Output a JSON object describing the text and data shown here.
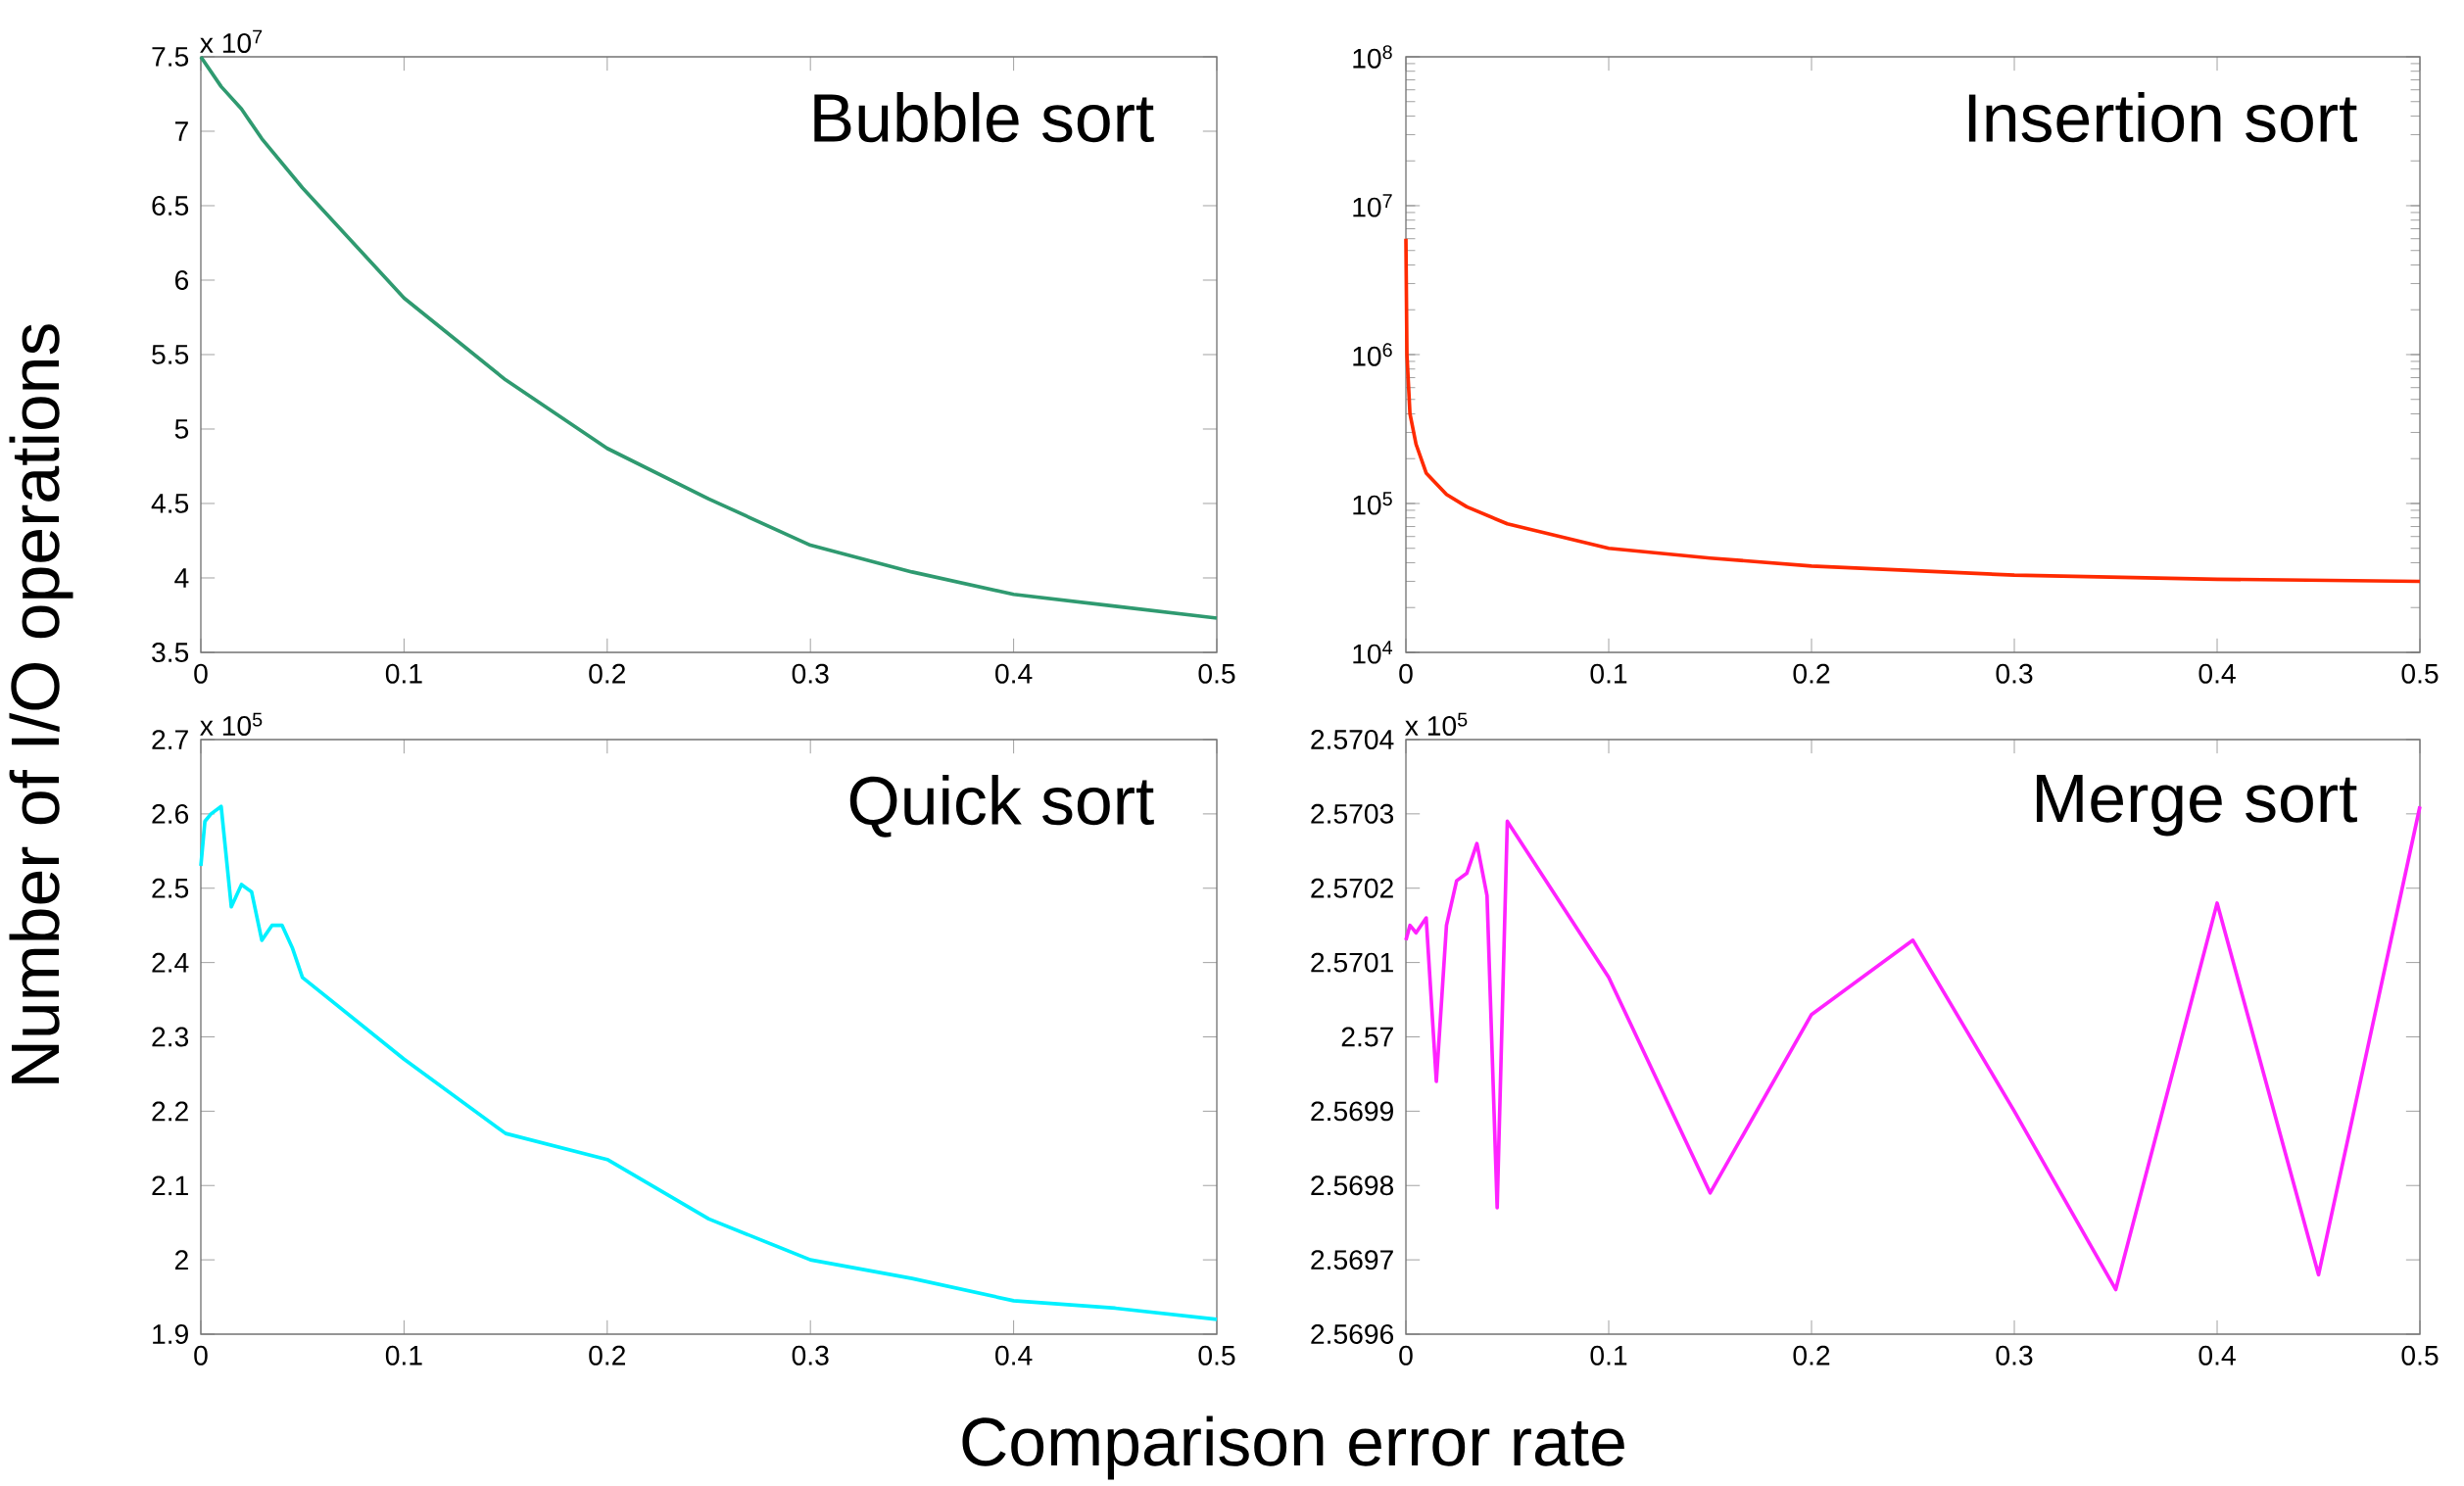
{
  "chart_data": [
    {
      "type": "line",
      "title": "Bubble sort",
      "ylabel": "Number of I/O operations",
      "annotations": [
        "x 10$^{7}$"
      ],
      "color": "#2f9a70",
      "x": [
        0,
        0.01,
        0.02,
        0.03,
        0.05,
        0.1,
        0.15,
        0.2,
        0.25,
        0.3,
        0.35,
        0.4,
        0.45,
        0.5
      ],
      "values": [
        7.5,
        7.3,
        7.15,
        6.95,
        6.62,
        5.88,
        5.33,
        4.87,
        4.53,
        4.22,
        4.04,
        3.89,
        3.81,
        3.73
      ],
      "xlim": [
        0,
        0.5
      ],
      "xticks": [
        0,
        0.1,
        0.2,
        0.3,
        0.4,
        0.5
      ],
      "ylim": [
        3.5,
        7.5
      ],
      "yticks": [
        3.5,
        4,
        4.5,
        5,
        5.5,
        6,
        6.5,
        7,
        7.5
      ]
    },
    {
      "type": "line",
      "title": "Insertion sort",
      "log": "y",
      "color": "#ff2a00",
      "x": [
        0,
        0.0005,
        0.002,
        0.005,
        0.01,
        0.02,
        0.03,
        0.05,
        0.1,
        0.15,
        0.2,
        0.3,
        0.4,
        0.5
      ],
      "values": [
        6000000,
        1000000,
        400000,
        250000,
        160000,
        115000,
        95000,
        73000,
        50000,
        43000,
        38000,
        33000,
        31000,
        30000
      ],
      "xlim": [
        0,
        0.5
      ],
      "xticks": [
        0,
        0.1,
        0.2,
        0.3,
        0.4,
        0.5
      ],
      "ylim": [
        10000,
        100000000
      ],
      "yticks": [
        {
          "value": 10000,
          "label": "10$^{4}$"
        },
        {
          "value": 100000,
          "label": "10$^{5}$"
        },
        {
          "value": 1000000,
          "label": "10$^{6}$"
        },
        {
          "value": 10000000,
          "label": "10$^{7}$"
        },
        {
          "value": 100000000,
          "label": "10$^{8}$"
        }
      ]
    },
    {
      "type": "line",
      "title": "Quick sort",
      "xlabel": "Comparison error rate",
      "annotations": [
        "x 10$^{5}$"
      ],
      "color": "#00f0ff",
      "x": [
        0,
        0.002,
        0.005,
        0.01,
        0.015,
        0.02,
        0.025,
        0.03,
        0.035,
        0.04,
        0.045,
        0.05,
        0.1,
        0.15,
        0.2,
        0.25,
        0.3,
        0.35,
        0.4,
        0.45,
        0.5
      ],
      "values": [
        2.53,
        2.59,
        2.6,
        2.61,
        2.475,
        2.505,
        2.495,
        2.43,
        2.45,
        2.45,
        2.42,
        2.38,
        2.27,
        2.17,
        2.135,
        2.055,
        2.0,
        1.975,
        1.945,
        1.935,
        1.92
      ],
      "xlim": [
        0,
        0.5
      ],
      "xticks": [
        0,
        0.1,
        0.2,
        0.3,
        0.4,
        0.5
      ],
      "ylim": [
        1.9,
        2.7
      ],
      "yticks": [
        1.9,
        2,
        2.1,
        2.2,
        2.3,
        2.4,
        2.5,
        2.6,
        2.7
      ]
    },
    {
      "type": "line",
      "title": "Merge sort",
      "annotations": [
        "x 10$^{5}$"
      ],
      "color": "#ff22ff",
      "x": [
        0,
        0.002,
        0.005,
        0.01,
        0.015,
        0.02,
        0.025,
        0.03,
        0.035,
        0.04,
        0.045,
        0.05,
        0.1,
        0.15,
        0.2,
        0.25,
        0.3,
        0.35,
        0.4,
        0.45,
        0.5
      ],
      "values": [
        2.57013,
        2.57015,
        2.57014,
        2.57016,
        2.56994,
        2.57015,
        2.57021,
        2.57022,
        2.57026,
        2.57019,
        2.56977,
        2.57029,
        2.57008,
        2.56979,
        2.57003,
        2.57013,
        2.5699,
        2.56966,
        2.57018,
        2.56968,
        2.57031
      ],
      "xlim": [
        0,
        0.5
      ],
      "xticks": [
        0,
        0.1,
        0.2,
        0.3,
        0.4,
        0.5
      ],
      "ylim": [
        2.5696,
        2.5704
      ],
      "yticks": [
        2.5696,
        2.5697,
        2.5698,
        2.5699,
        2.57,
        2.5701,
        2.5702,
        2.5703,
        2.5704
      ]
    }
  ]
}
